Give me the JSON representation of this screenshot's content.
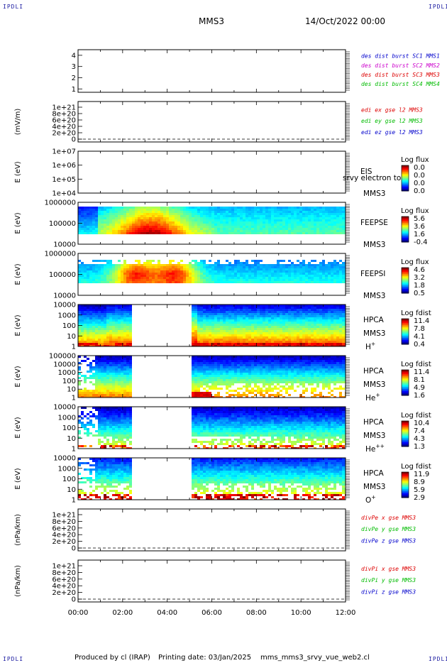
{
  "corner_labels": {
    "top_left": "IPDLI",
    "top_right": "IPDLI",
    "bottom_left": "IPDLI",
    "bottom_right": "IPDLI"
  },
  "header": {
    "spacecraft": "MMS3",
    "datetime": "14/Oct/2022 00:00"
  },
  "footer": {
    "produced_by": "Produced by cl (IRAP)",
    "printing_date": "Printing date: 03/Jan/2025",
    "filename": "mms_mms3_srvy_vue_web2.cl"
  },
  "time_axis": [
    "00:00",
    "02:00",
    "04:00",
    "06:00",
    "08:00",
    "10:00",
    "12:00"
  ],
  "colors": {
    "red": "#dd0000",
    "green": "#00bb00",
    "blue": "#0000cc",
    "magenta": "#cc00cc",
    "axis": "#000000"
  },
  "chart_data": [
    {
      "type": "line",
      "panel": "distributions",
      "yticks": [
        "1",
        "2",
        "3",
        "4"
      ],
      "ylim": [
        0.7,
        4.5
      ],
      "legend": [
        {
          "text": "des dist burst SC1 MMS1",
          "color": "#0000cc"
        },
        {
          "text": "des dist burst SC2 MMS2",
          "color": "#cc00cc"
        },
        {
          "text": "des dist burst SC3 MMS3",
          "color": "#dd0000"
        },
        {
          "text": "des dist burst SC4 MMS4",
          "color": "#00bb00"
        }
      ]
    },
    {
      "type": "line",
      "panel": "edi",
      "ylabel": "(mV/m)",
      "yticks": [
        "0",
        "2e+20",
        "4e+20",
        "6e+20",
        "8e+20",
        "1e+21"
      ],
      "zero_dashed": true,
      "legend": [
        {
          "text": "edi ex gse l2 MMS3",
          "color": "#dd0000"
        },
        {
          "text": "edi ey gse l2 MMS3",
          "color": "#00bb00"
        },
        {
          "text": "edi ez gse l2 MMS3",
          "color": "#0000cc"
        }
      ]
    },
    {
      "type": "heatmap",
      "panel": "eis",
      "ylabel": "E (eV)",
      "yticks": [
        "1e+04",
        "1e+05",
        "1e+06",
        "1e+07"
      ],
      "log": true,
      "labels": [
        "EIS",
        "MMS3"
      ],
      "overlay_text": "srvy electron to",
      "colorbar_title": "Log flux",
      "colorbar_ticks": [
        "0.0",
        "0.0",
        "0.0",
        "0.0"
      ],
      "empty": true
    },
    {
      "type": "heatmap",
      "panel": "feeps_e",
      "ylabel": "E (eV)",
      "yticks": [
        "10000",
        "100000",
        "1000000"
      ],
      "log": true,
      "labels": [
        "FEEPSE",
        "MMS3"
      ],
      "colorbar_title": "Log flux",
      "colorbar_ticks": [
        "5.6",
        "3.6",
        "1.6",
        "-0.4"
      ]
    },
    {
      "type": "heatmap",
      "panel": "feeps_i",
      "ylabel": "E (eV)",
      "yticks": [
        "10000",
        "100000",
        "1000000"
      ],
      "log": true,
      "labels": [
        "FEEPSI",
        "MMS3"
      ],
      "colorbar_title": "Log flux",
      "colorbar_ticks": [
        "4.6",
        "3.2",
        "1.8",
        "0.5"
      ]
    },
    {
      "type": "heatmap",
      "panel": "hpca_h",
      "ylabel": "E (eV)",
      "yticks": [
        "1",
        "10",
        "100",
        "1000",
        "10000"
      ],
      "log": true,
      "labels": [
        "HPCA",
        "MMS3"
      ],
      "species": "H",
      "species_sup": "+",
      "colorbar_title": "Log fdist",
      "colorbar_ticks": [
        "11.4",
        "7.8",
        "4.1",
        "0.4"
      ],
      "gap_hours": [
        2.3,
        5.0
      ]
    },
    {
      "type": "heatmap",
      "panel": "hpca_he1",
      "ylabel": "E (eV)",
      "yticks": [
        "1",
        "10",
        "100",
        "1000",
        "10000",
        "100000"
      ],
      "log": true,
      "labels": [
        "HPCA",
        "MMS3"
      ],
      "species": "He",
      "species_sup": "+",
      "colorbar_title": "Log fdist",
      "colorbar_ticks": [
        "11.4",
        "8.1",
        "4.9",
        "1.6"
      ],
      "gap_hours": [
        2.3,
        5.0
      ]
    },
    {
      "type": "heatmap",
      "panel": "hpca_he2",
      "ylabel": "E (eV)",
      "yticks": [
        "1",
        "10",
        "100",
        "1000",
        "10000"
      ],
      "log": true,
      "labels": [
        "HPCA",
        "MMS3"
      ],
      "species": "He",
      "species_sup": "++",
      "colorbar_title": "Log fdist",
      "colorbar_ticks": [
        "10.4",
        "7.4",
        "4.3",
        "1.3"
      ],
      "gap_hours": [
        2.3,
        5.0
      ]
    },
    {
      "type": "heatmap",
      "panel": "hpca_o",
      "ylabel": "E (eV)",
      "yticks": [
        "1",
        "10",
        "100",
        "1000",
        "10000"
      ],
      "log": true,
      "labels": [
        "HPCA",
        "MMS3"
      ],
      "species": "O",
      "species_sup": "+",
      "colorbar_title": "Log fdist",
      "colorbar_ticks": [
        "11.9",
        "8.9",
        "5.9",
        "2.9"
      ],
      "gap_hours": [
        2.3,
        5.0
      ]
    },
    {
      "type": "line",
      "panel": "divpe",
      "ylabel": "(nPa/km)",
      "yticks": [
        "0",
        "2e+20",
        "4e+20",
        "6e+20",
        "8e+20",
        "1e+21"
      ],
      "zero_dashed": true,
      "legend": [
        {
          "text": "divPe x gse MMS3",
          "color": "#dd0000"
        },
        {
          "text": "divPe y gse MMS3",
          "color": "#00bb00"
        },
        {
          "text": "divPe z gse MMS3",
          "color": "#0000cc"
        }
      ]
    },
    {
      "type": "line",
      "panel": "divpi",
      "ylabel": "(nPa/km)",
      "yticks": [
        "0",
        "2e+20",
        "4e+20",
        "6e+20",
        "8e+20",
        "1e+21"
      ],
      "zero_dashed": true,
      "legend": [
        {
          "text": "divPi x gse MMS3",
          "color": "#dd0000"
        },
        {
          "text": "divPi y gse MMS3",
          "color": "#00bb00"
        },
        {
          "text": "divPi z gse MMS3",
          "color": "#0000cc"
        }
      ]
    }
  ]
}
